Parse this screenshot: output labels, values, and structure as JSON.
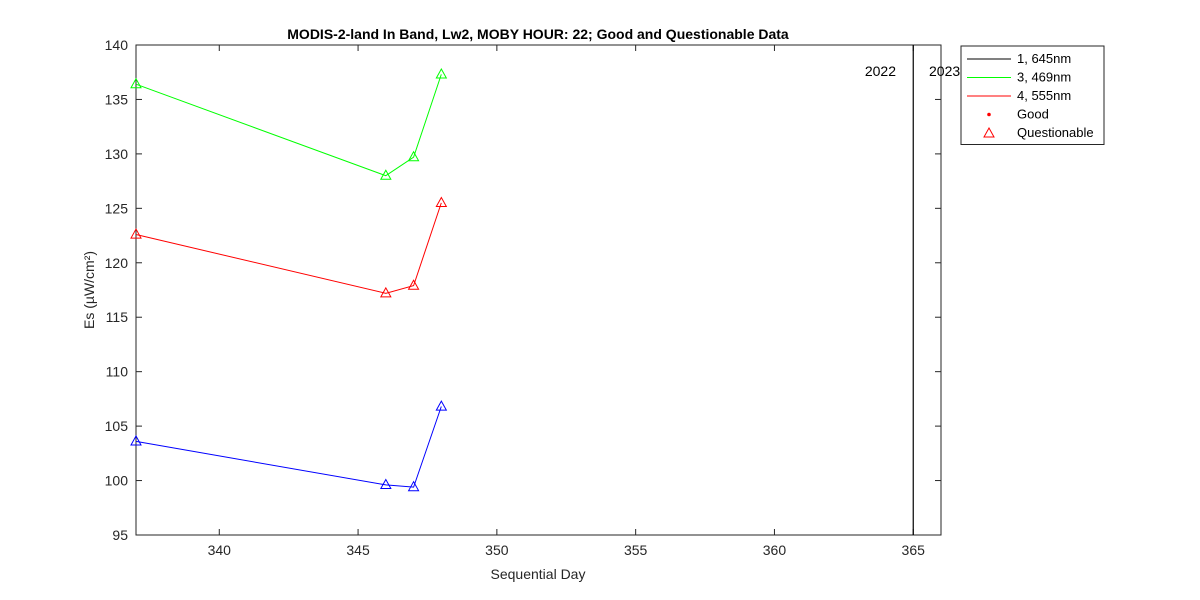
{
  "chart_data": {
    "type": "line",
    "title": "MODIS-2-land In Band,  Lw2, MOBY HOUR: 22;  Good and Questionable Data",
    "xlabel": "Sequential Day",
    "ylabel": "Es (µW/cm²)",
    "xlim": [
      337,
      366
    ],
    "ylim": [
      95,
      140
    ],
    "xticks": [
      340,
      345,
      350,
      355,
      360,
      365
    ],
    "yticks": [
      95,
      100,
      105,
      110,
      115,
      120,
      125,
      130,
      135,
      140
    ],
    "grid": false,
    "legend_position": "outside-top-right",
    "series": [
      {
        "name": "1, 645nm",
        "color": "#0000ff",
        "legend_color": "#000000",
        "x": [
          337,
          346,
          347,
          348
        ],
        "y": [
          103.6,
          99.6,
          99.4,
          106.8
        ],
        "quality": [
          "Questionable",
          "Questionable",
          "Questionable",
          "Questionable"
        ]
      },
      {
        "name": "3, 469nm",
        "color": "#00ff00",
        "legend_color": "#00ff00",
        "x": [
          337,
          346,
          347,
          348
        ],
        "y": [
          136.4,
          128.0,
          129.7,
          137.3
        ],
        "quality": [
          "Questionable",
          "Questionable",
          "Questionable",
          "Questionable"
        ]
      },
      {
        "name": "4, 555nm",
        "color": "#ff0000",
        "legend_color": "#ff0000",
        "x": [
          337,
          346,
          347,
          348
        ],
        "y": [
          122.6,
          117.2,
          117.9,
          125.5
        ],
        "quality": [
          "Questionable",
          "Questionable",
          "Questionable",
          "Questionable"
        ]
      }
    ],
    "marker_legend": [
      {
        "label": "Good",
        "marker": "dot",
        "color": "#ff0000"
      },
      {
        "label": "Questionable",
        "marker": "triangle",
        "color": "#ff0000"
      }
    ],
    "year_boundary": {
      "x": 365,
      "label_before": "2022",
      "label_after": "2023",
      "color": "#000000"
    }
  }
}
